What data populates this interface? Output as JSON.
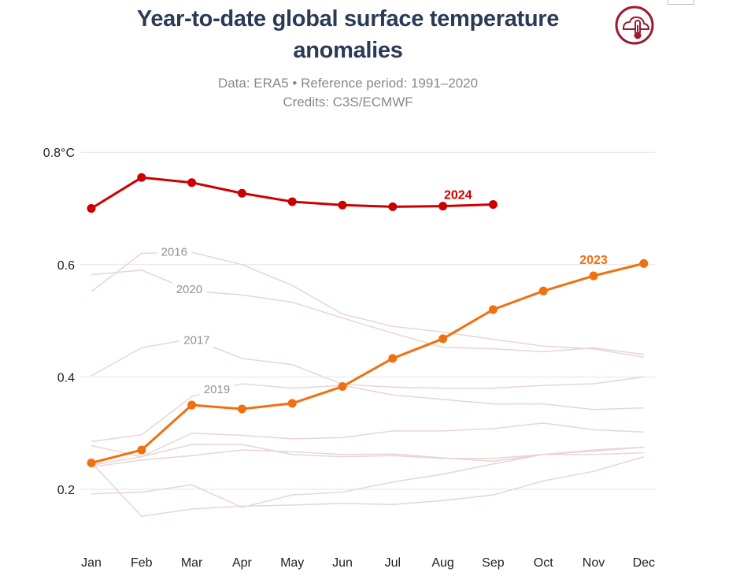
{
  "header": {
    "title_line1": "Year-to-date global surface temperature",
    "title_line2": "anomalies",
    "subtitle_line1": "Data: ERA5 • Reference period: 1991–2020",
    "subtitle_line2": "Credits: C3S/ECMWF"
  },
  "logo": {
    "icon": "cloud-thermometer-icon",
    "color": "#9e1b32"
  },
  "chart_data": {
    "type": "line",
    "title": "Year-to-date global surface temperature anomalies",
    "subtitle": "Data: ERA5 • Reference period: 1991–2020",
    "categories": [
      "Jan",
      "Feb",
      "Mar",
      "Apr",
      "May",
      "Jun",
      "Jul",
      "Aug",
      "Sep",
      "Oct",
      "Nov",
      "Dec"
    ],
    "ylim": [
      0.1,
      0.82
    ],
    "y_ticks": [
      0.2,
      0.4,
      0.6,
      0.8
    ],
    "y_tick_labels": [
      "0.2",
      "0.4",
      "0.6",
      "0.8°C"
    ],
    "grid": "horizontal",
    "highlighted_series": [
      {
        "name": "2024",
        "color": "#cc0000",
        "values": [
          0.7,
          0.755,
          0.746,
          0.727,
          0.712,
          0.706,
          0.703,
          0.704,
          0.707
        ]
      },
      {
        "name": "2023",
        "color": "#f07010",
        "values": [
          0.247,
          0.27,
          0.35,
          0.343,
          0.353,
          0.383,
          0.433,
          0.468,
          0.52,
          0.553,
          0.58,
          0.602
        ]
      }
    ],
    "background_series_color": "#e8d5d5",
    "background_series": [
      {
        "name": "2016",
        "labeled": true,
        "values": [
          0.552,
          0.62,
          0.622,
          0.6,
          0.563,
          0.512,
          0.49,
          0.48,
          0.467,
          0.455,
          0.45,
          0.435
        ]
      },
      {
        "name": "2020",
        "labeled": true,
        "values": [
          0.582,
          0.59,
          0.553,
          0.546,
          0.533,
          0.505,
          0.478,
          0.453,
          0.45,
          0.445,
          0.452,
          0.44
        ]
      },
      {
        "name": "2017",
        "labeled": true,
        "values": [
          0.402,
          0.452,
          0.468,
          0.433,
          0.422,
          0.387,
          0.382,
          0.38,
          0.38,
          0.385,
          0.388,
          0.4
        ]
      },
      {
        "name": "2019",
        "labeled": true,
        "values": [
          0.285,
          0.297,
          0.365,
          0.388,
          0.38,
          0.385,
          0.368,
          0.36,
          0.352,
          0.352,
          0.342,
          0.345
        ]
      },
      {
        "name": "",
        "labeled": false,
        "values": [
          0.278,
          0.258,
          0.3,
          0.296,
          0.29,
          0.292,
          0.304,
          0.304,
          0.308,
          0.318,
          0.306,
          0.302
        ]
      },
      {
        "name": "",
        "labeled": false,
        "values": [
          0.24,
          0.252,
          0.26,
          0.27,
          0.267,
          0.262,
          0.263,
          0.256,
          0.25,
          0.262,
          0.262,
          0.265
        ]
      },
      {
        "name": "",
        "labeled": false,
        "values": [
          0.243,
          0.258,
          0.28,
          0.28,
          0.262,
          0.258,
          0.26,
          0.255,
          0.255,
          0.262,
          0.27,
          0.275
        ]
      },
      {
        "name": "",
        "labeled": false,
        "values": [
          0.248,
          0.152,
          0.165,
          0.17,
          0.172,
          0.175,
          0.173,
          0.18,
          0.19,
          0.215,
          0.232,
          0.258
        ]
      },
      {
        "name": "",
        "labeled": false,
        "values": [
          0.192,
          0.195,
          0.208,
          0.168,
          0.19,
          0.195,
          0.213,
          0.227,
          0.245,
          0.262,
          0.268,
          0.275
        ]
      }
    ]
  }
}
